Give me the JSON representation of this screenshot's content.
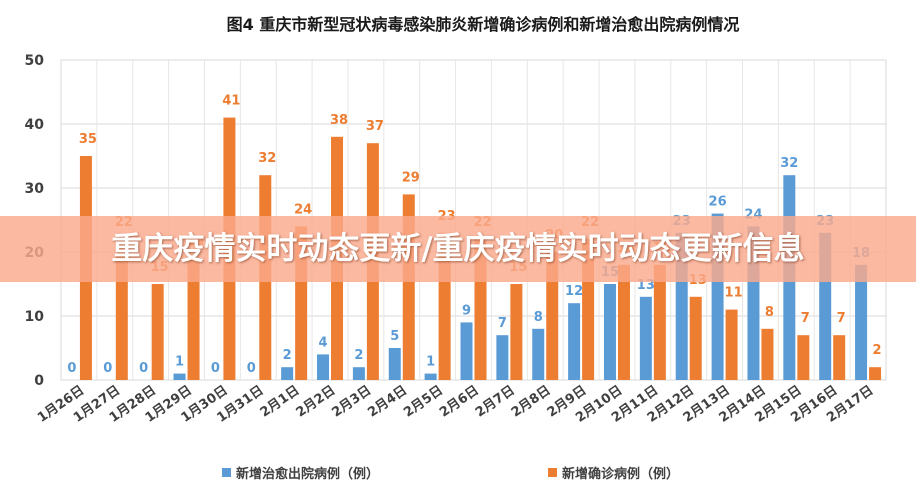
{
  "overlay_banner": {
    "text": "重庆疫情实时动态更新/重庆疫情实时动态更新信息"
  },
  "chart_data": {
    "type": "bar",
    "title": "图4    重庆市新型冠状病毒感染肺炎新增确诊病例和新增治愈出院病例情况",
    "categories": [
      "1月26日",
      "1月27日",
      "1月28日",
      "1月29日",
      "1月30日",
      "1月31日",
      "2月1日",
      "2月2日",
      "2月3日",
      "2月4日",
      "2月5日",
      "2月6日",
      "2月7日",
      "2月8日",
      "2月9日",
      "2月10日",
      "2月11日",
      "2月12日",
      "2月13日",
      "2月14日",
      "2月15日",
      "2月16日",
      "2月17日"
    ],
    "series": [
      {
        "name": "新增治愈出院病例（例）",
        "color": "#5b9bd5",
        "values": [
          0,
          0,
          0,
          1,
          0,
          0,
          2,
          4,
          2,
          5,
          1,
          9,
          7,
          8,
          12,
          15,
          13,
          23,
          26,
          24,
          32,
          23,
          18
        ]
      },
      {
        "name": "新增确诊病例（例）",
        "color": "#ed7d31",
        "values": [
          35,
          22,
          15,
          19,
          41,
          32,
          24,
          38,
          37,
          29,
          23,
          22,
          15,
          20,
          22,
          18,
          18,
          13,
          11,
          8,
          7,
          7,
          2
        ]
      }
    ],
    "ylim": [
      0,
      50
    ],
    "yticks": [
      0,
      10,
      20,
      30,
      40,
      50
    ],
    "xlabel": "",
    "ylabel": "",
    "grid": true,
    "legend_position": "bottom"
  }
}
